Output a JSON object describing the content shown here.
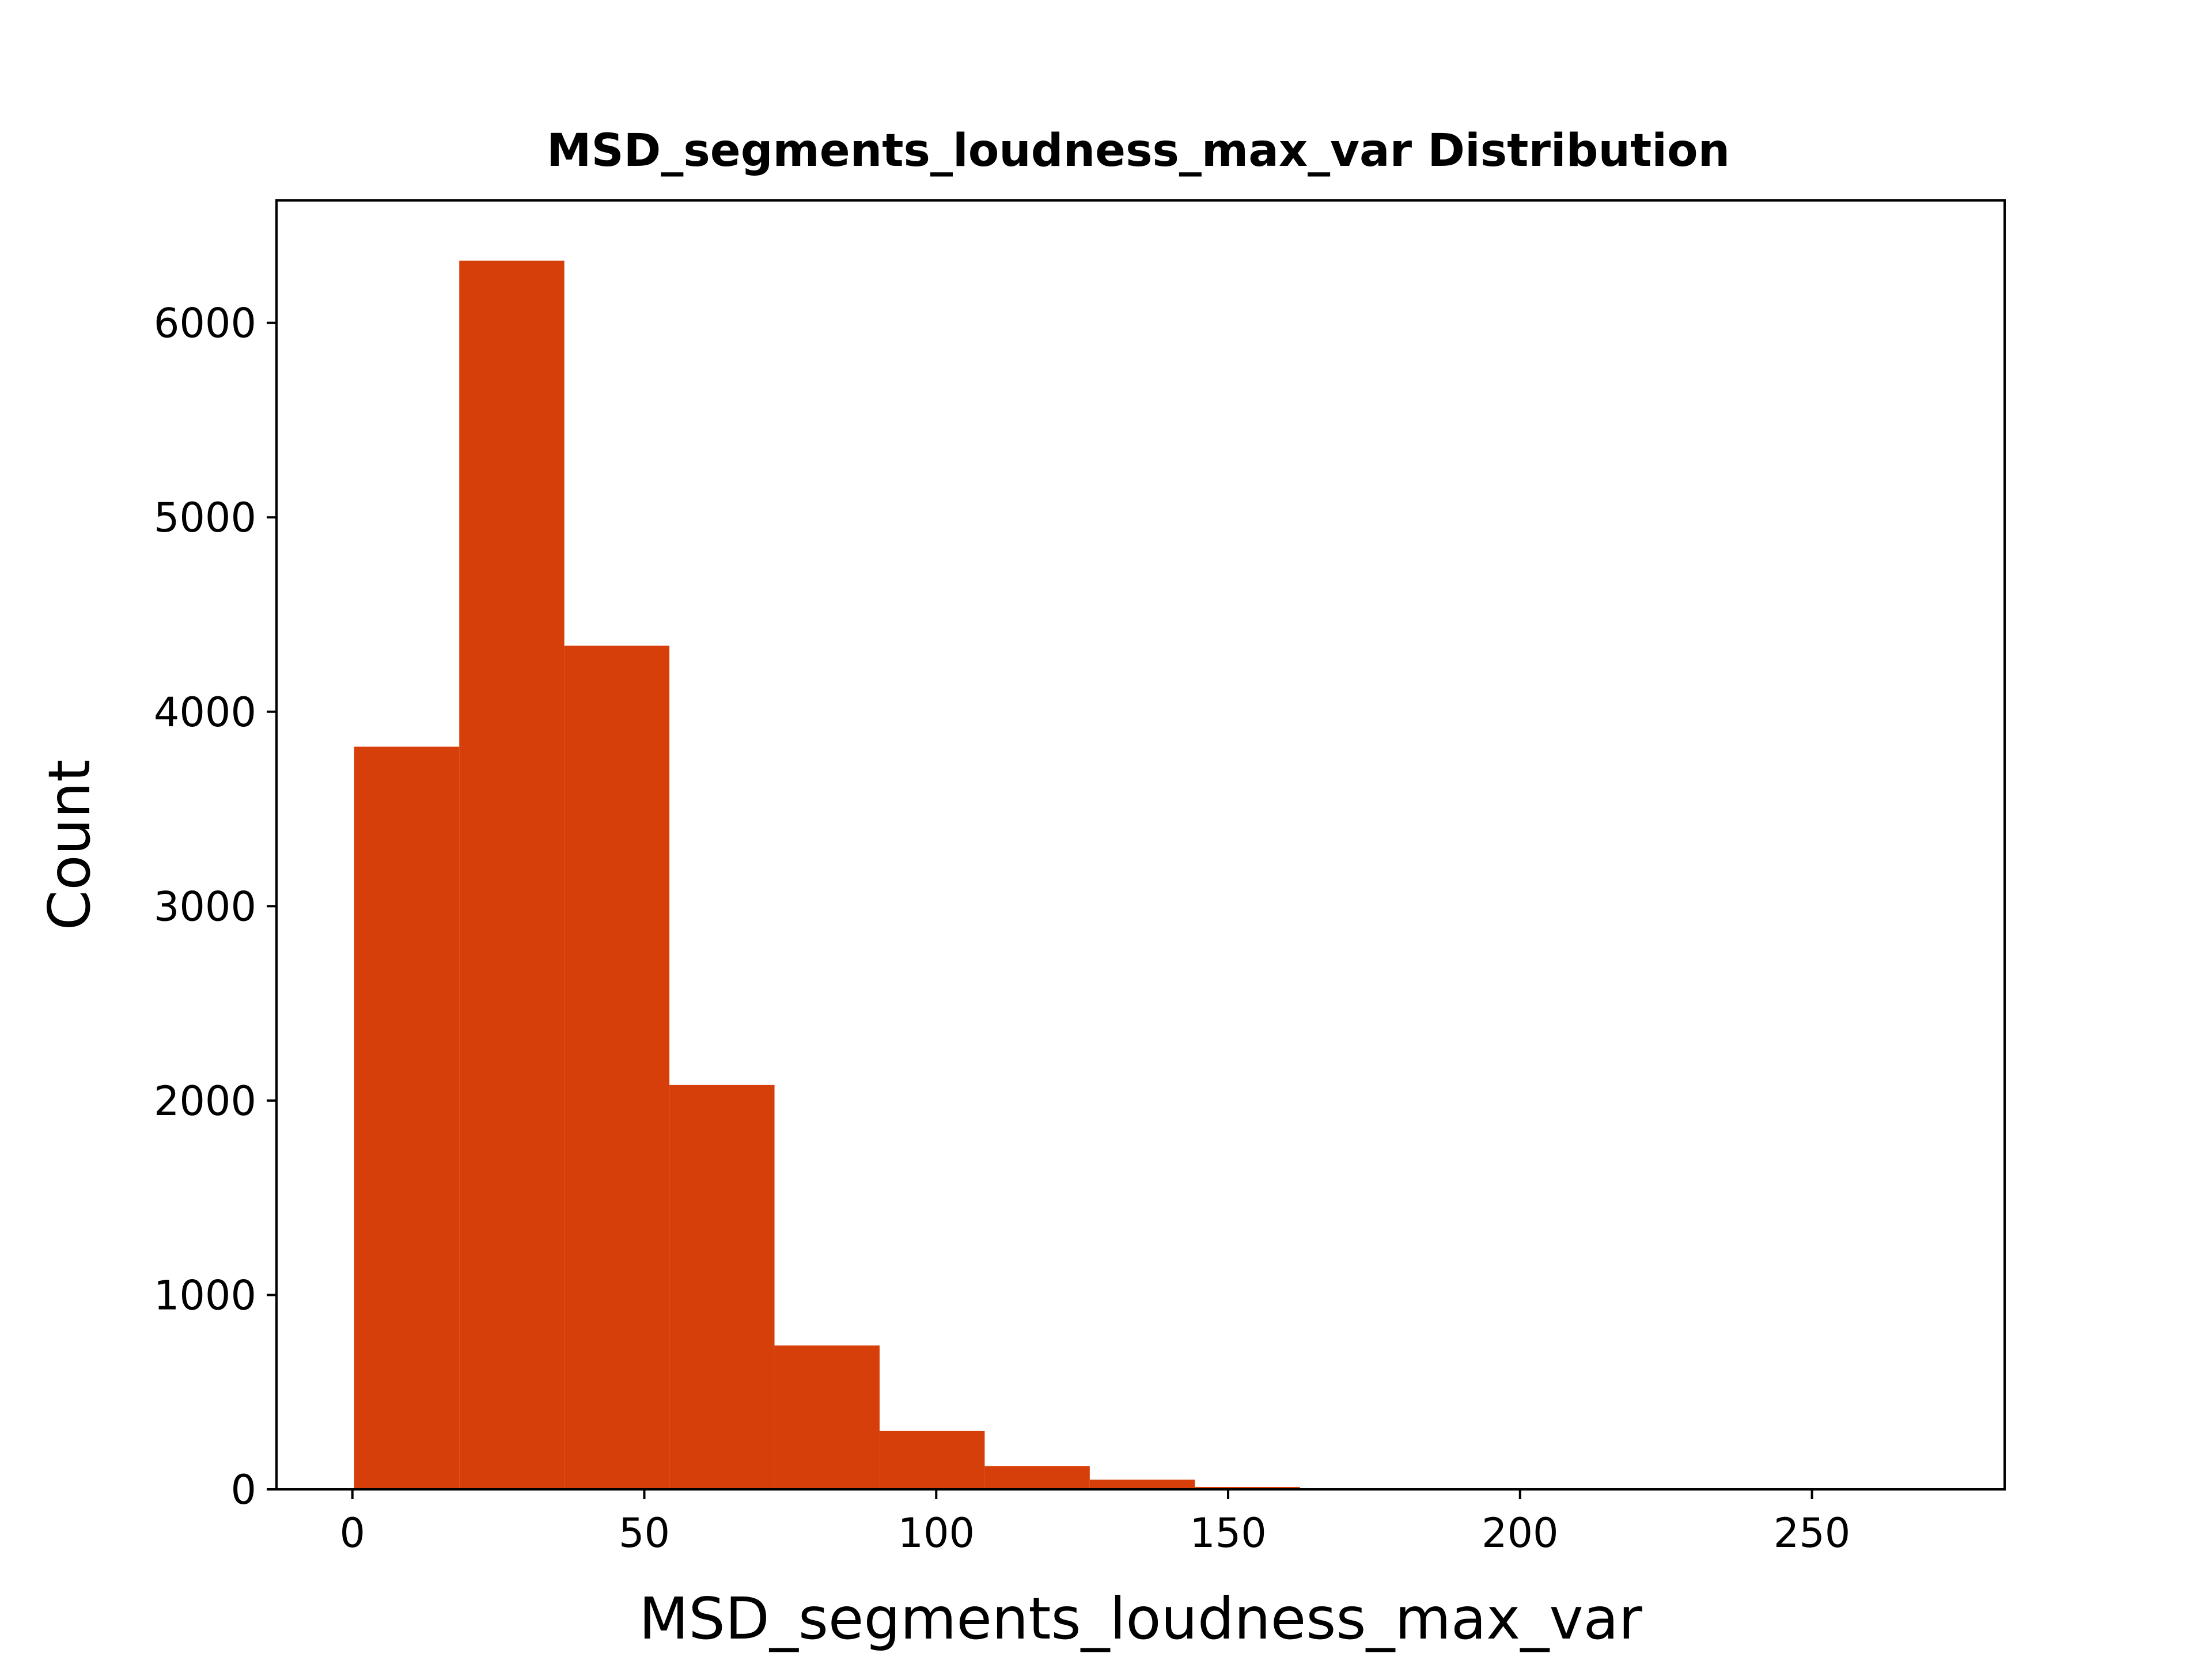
{
  "chart_data": {
    "type": "bar",
    "title": "MSD_segments_loudness_max_var Distribution",
    "xlabel": "MSD_segments_loudness_max_var",
    "ylabel": "Count",
    "bin_edges": [
      0.3,
      18.3,
      36.3,
      54.3,
      72.3,
      90.3,
      108.3,
      126.3,
      144.3,
      162.3,
      180.3,
      198.3,
      216.3,
      234.3,
      252.3,
      270.3
    ],
    "values": [
      3820,
      6320,
      4340,
      2080,
      740,
      300,
      120,
      50,
      12,
      4,
      2,
      1,
      1,
      0,
      1
    ],
    "xlim": [
      -13,
      283
    ],
    "ylim": [
      0,
      6630
    ],
    "x_ticks": [
      0,
      50,
      100,
      150,
      200,
      250
    ],
    "y_ticks": [
      0,
      1000,
      2000,
      3000,
      4000,
      5000,
      6000
    ],
    "grid": false,
    "bar_color": "#d63f0a"
  }
}
